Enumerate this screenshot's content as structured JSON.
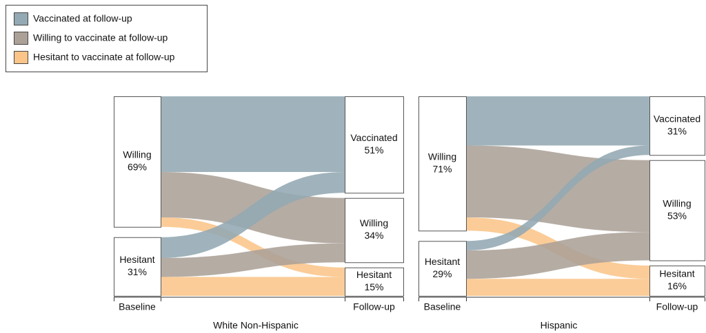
{
  "legend": [
    {
      "name": "Vaccinated at follow-up",
      "color": "#93a9b3"
    },
    {
      "name": "Willing to vaccinate at follow-up",
      "color": "#aba197"
    },
    {
      "name": "Hesitant to vaccinate at follow-up",
      "color": "#fbc58a"
    }
  ],
  "chart_data": [
    {
      "type": "sankey",
      "title": "White Non-Hispanic",
      "left_label": "Baseline",
      "right_label": "Follow-up",
      "sources": [
        {
          "name": "Willing",
          "value": 69,
          "value_label": "69%"
        },
        {
          "name": "Hesitant",
          "value": 31,
          "value_label": "31%"
        }
      ],
      "targets": [
        {
          "name": "Vaccinated",
          "value": 51,
          "value_label": "51%"
        },
        {
          "name": "Willing",
          "value": 34,
          "value_label": "34%"
        },
        {
          "name": "Hesitant",
          "value": 15,
          "value_label": "15%"
        }
      ],
      "flows": [
        [
          40,
          24,
          5
        ],
        [
          11,
          10,
          10
        ]
      ]
    },
    {
      "type": "sankey",
      "title": "Hispanic",
      "left_label": "Baseline",
      "right_label": "Follow-up",
      "sources": [
        {
          "name": "Willing",
          "value": 71,
          "value_label": "71%"
        },
        {
          "name": "Hesitant",
          "value": 29,
          "value_label": "29%"
        }
      ],
      "targets": [
        {
          "name": "Vaccinated",
          "value": 31,
          "value_label": "31%"
        },
        {
          "name": "Willing",
          "value": 53,
          "value_label": "53%"
        },
        {
          "name": "Hesitant",
          "value": 16,
          "value_label": "16%"
        }
      ],
      "flows": [
        [
          26,
          38,
          7
        ],
        [
          5,
          15,
          9
        ]
      ]
    }
  ]
}
